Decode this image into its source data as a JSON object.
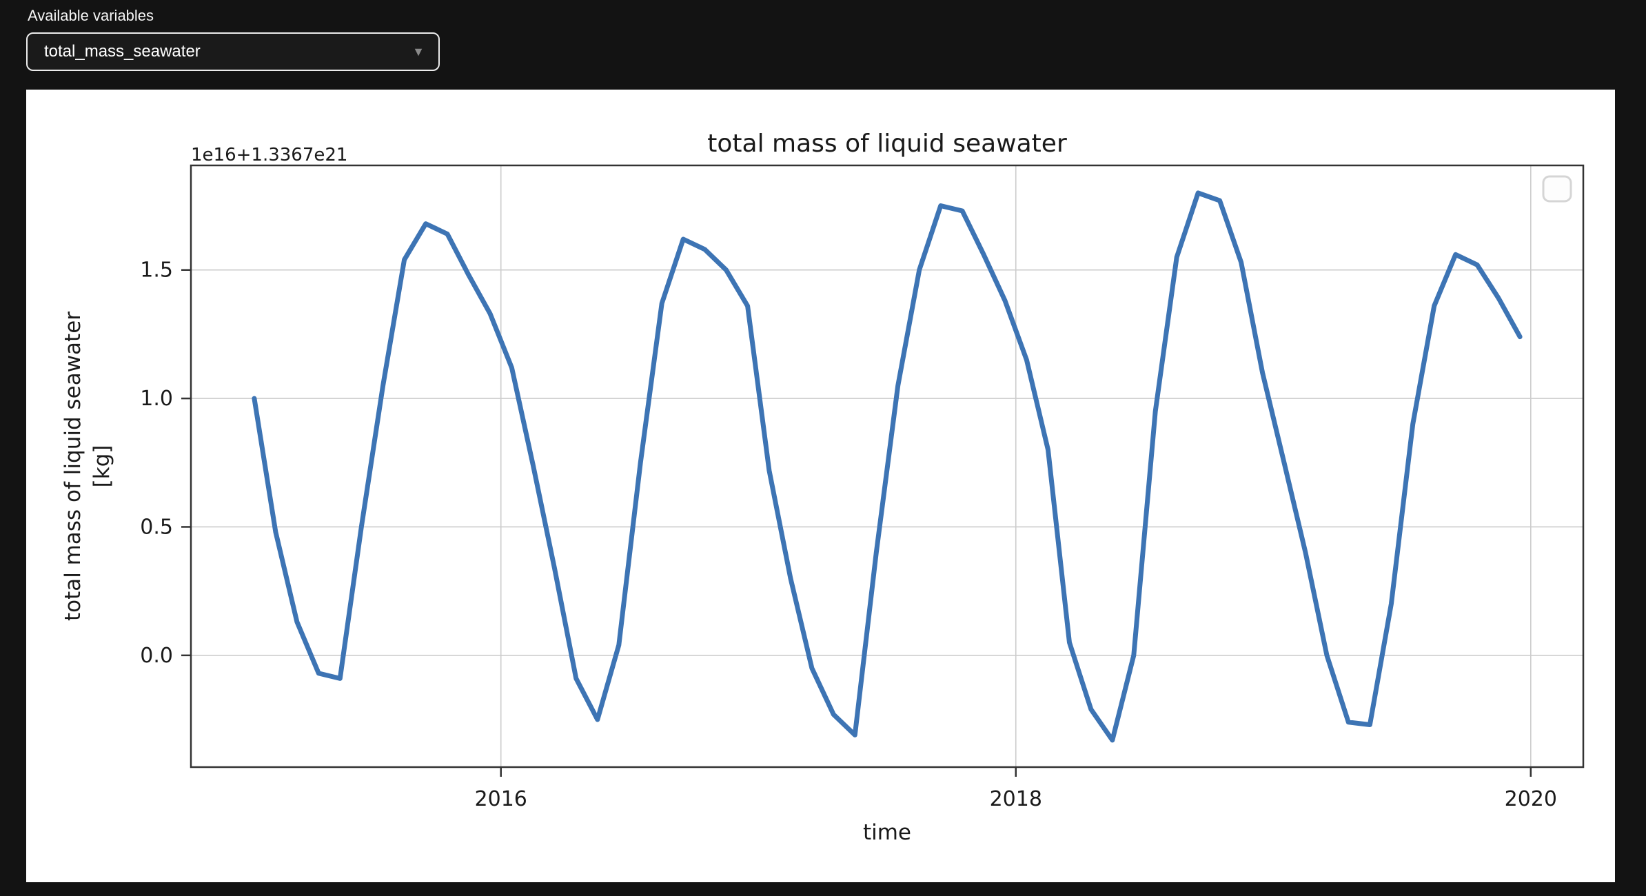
{
  "page": {
    "background": "#131313"
  },
  "header": {
    "label": "Available variables",
    "dropdown": {
      "value": "total_mass_seawater",
      "options": [
        "total_mass_seawater"
      ]
    }
  },
  "chart": {
    "title": "total mass of liquid seawater",
    "offset_text": "1e16+1.3367e21",
    "xlabel": "time",
    "ylabel_line1": "total mass of liquid seawater",
    "ylabel_line2": "[kg]",
    "legend": {
      "visible": true,
      "entries": []
    },
    "colors": {
      "line": "#3d74b4",
      "grid": "#cccccc",
      "spine": "#333333",
      "text": "#1a1a1a",
      "panel": "#ffffff",
      "legend_border": "#d5d5d5"
    }
  },
  "chart_data": {
    "type": "line",
    "series_name": "total_mass_seawater",
    "title": "total mass of liquid seawater",
    "xlabel": "time",
    "ylabel": "total mass of liquid seawater [kg]",
    "offset": "1e16+1.3367e21",
    "xlim": [
      2014.796,
      2020.204
    ],
    "ylim": [
      -0.435,
      1.907
    ],
    "xticks": [
      2016,
      2018,
      2020
    ],
    "xtick_labels": [
      "2016",
      "2018",
      "2020"
    ],
    "yticks": [
      1.5,
      1.0,
      0.5,
      0.0
    ],
    "ytick_labels": [
      "1.5",
      "1.0",
      "0.5",
      "0.0"
    ],
    "grid": true,
    "x": [
      2015.042,
      2015.125,
      2015.208,
      2015.292,
      2015.375,
      2015.458,
      2015.542,
      2015.625,
      2015.708,
      2015.792,
      2015.875,
      2015.958,
      2016.042,
      2016.125,
      2016.208,
      2016.292,
      2016.375,
      2016.458,
      2016.542,
      2016.625,
      2016.708,
      2016.792,
      2016.875,
      2016.958,
      2017.042,
      2017.125,
      2017.208,
      2017.292,
      2017.375,
      2017.458,
      2017.542,
      2017.625,
      2017.708,
      2017.792,
      2017.875,
      2017.958,
      2018.042,
      2018.125,
      2018.208,
      2018.292,
      2018.375,
      2018.458,
      2018.542,
      2018.625,
      2018.708,
      2018.792,
      2018.875,
      2018.958,
      2019.042,
      2019.125,
      2019.208,
      2019.292,
      2019.375,
      2019.458,
      2019.542,
      2019.625,
      2019.708,
      2019.792,
      2019.875,
      2019.958
    ],
    "values": [
      1.0,
      0.48,
      0.13,
      -0.07,
      -0.09,
      0.5,
      1.05,
      1.54,
      1.68,
      1.64,
      1.48,
      1.33,
      1.12,
      0.74,
      0.34,
      -0.09,
      -0.25,
      0.04,
      0.75,
      1.37,
      1.62,
      1.58,
      1.5,
      1.36,
      0.72,
      0.3,
      -0.05,
      -0.23,
      -0.31,
      0.4,
      1.05,
      1.5,
      1.75,
      1.73,
      1.56,
      1.38,
      1.15,
      0.8,
      0.05,
      -0.21,
      -0.33,
      0.0,
      0.95,
      1.55,
      1.8,
      1.77,
      1.53,
      1.1,
      0.75,
      0.4,
      0.0,
      -0.26,
      -0.27,
      0.2,
      0.9,
      1.36,
      1.56,
      1.52,
      1.39,
      1.24
    ]
  }
}
